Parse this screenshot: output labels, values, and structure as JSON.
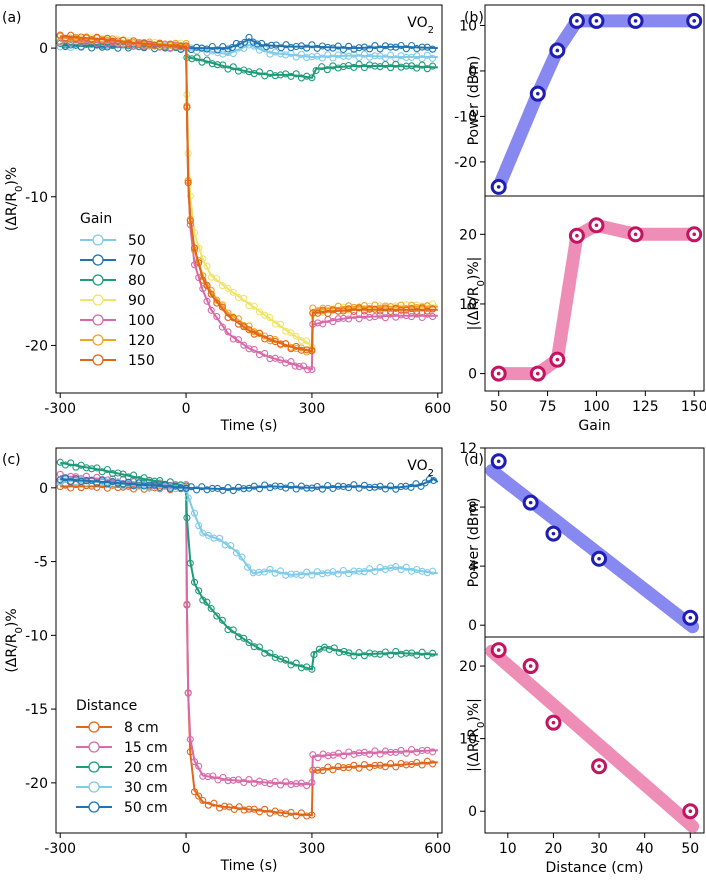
{
  "chart_data": [
    {
      "panel": "(a)",
      "type": "line",
      "annotation": "VO2",
      "xlabel": "Time (s)",
      "ylabel": "(ΔR/R0)%",
      "xlim": [
        -310,
        610
      ],
      "ylim": [
        -23.2,
        2.9
      ],
      "xticks": [
        -300,
        0,
        300,
        600
      ],
      "yticks": [
        0,
        -10,
        -20
      ],
      "legend_title": "Gain",
      "legend_position": "left",
      "series": [
        {
          "name": "50",
          "color": "#7FCBEA",
          "points": [
            [
              -300,
              0.1
            ],
            [
              -200,
              0.3
            ],
            [
              -100,
              0.2
            ],
            [
              0,
              0
            ],
            [
              100,
              -0.4
            ],
            [
              150,
              0.2
            ],
            [
              200,
              -0.3
            ],
            [
              300,
              -0.6
            ],
            [
              400,
              -0.5
            ],
            [
              500,
              -0.6
            ],
            [
              600,
              -0.6
            ]
          ]
        },
        {
          "name": "70",
          "color": "#1F74B0",
          "points": [
            [
              -300,
              0.2
            ],
            [
              -200,
              0.1
            ],
            [
              -100,
              0.1
            ],
            [
              0,
              0
            ],
            [
              50,
              0
            ],
            [
              100,
              0
            ],
            [
              130,
              0.3
            ],
            [
              150,
              0.6
            ],
            [
              180,
              0.2
            ],
            [
              250,
              0.1
            ],
            [
              300,
              0.1
            ],
            [
              400,
              0
            ],
            [
              500,
              0.1
            ],
            [
              600,
              0
            ]
          ]
        },
        {
          "name": "80",
          "color": "#1E9B78",
          "points": [
            [
              -300,
              0.3
            ],
            [
              -200,
              0.3
            ],
            [
              -100,
              0.2
            ],
            [
              0,
              0.1
            ],
            [
              2,
              -0.6
            ],
            [
              50,
              -0.9
            ],
            [
              100,
              -1.3
            ],
            [
              150,
              -1.6
            ],
            [
              200,
              -1.8
            ],
            [
              250,
              -1.8
            ],
            [
              300,
              -2.0
            ],
            [
              310,
              -1.4
            ],
            [
              350,
              -1.3
            ],
            [
              400,
              -1.2
            ],
            [
              500,
              -1.2
            ],
            [
              600,
              -1.3
            ]
          ]
        },
        {
          "name": "90",
          "color": "#F0E468",
          "points": [
            [
              -300,
              0.5
            ],
            [
              -200,
              0.6
            ],
            [
              -100,
              0.3
            ],
            [
              0,
              0.2
            ],
            [
              2,
              -3
            ],
            [
              5,
              -7
            ],
            [
              10,
              -10
            ],
            [
              20,
              -12.5
            ],
            [
              40,
              -14.2
            ],
            [
              60,
              -15.3
            ],
            [
              100,
              -16.2
            ],
            [
              150,
              -17.2
            ],
            [
              200,
              -18.2
            ],
            [
              250,
              -19.2
            ],
            [
              300,
              -20
            ],
            [
              302,
              -17.8
            ],
            [
              350,
              -17.6
            ],
            [
              400,
              -17.5
            ],
            [
              500,
              -17.4
            ],
            [
              600,
              -17.3
            ]
          ]
        },
        {
          "name": "100",
          "color": "#D86AAA",
          "points": [
            [
              -300,
              0.5
            ],
            [
              -200,
              0.4
            ],
            [
              -100,
              0.2
            ],
            [
              0,
              0.1
            ],
            [
              2,
              -4
            ],
            [
              5,
              -9
            ],
            [
              10,
              -12
            ],
            [
              20,
              -14.5
            ],
            [
              40,
              -16.3
            ],
            [
              60,
              -17.6
            ],
            [
              100,
              -19.2
            ],
            [
              150,
              -20.2
            ],
            [
              200,
              -20.8
            ],
            [
              250,
              -21.2
            ],
            [
              280,
              -21.5
            ],
            [
              300,
              -21.6
            ],
            [
              302,
              -18.6
            ],
            [
              350,
              -18.3
            ],
            [
              400,
              -18.1
            ],
            [
              500,
              -18
            ],
            [
              600,
              -18
            ]
          ]
        },
        {
          "name": "120",
          "color": "#F0A326",
          "points": [
            [
              -300,
              0.7
            ],
            [
              -200,
              0.6
            ],
            [
              -100,
              0.3
            ],
            [
              0,
              0.2
            ],
            [
              2,
              -4
            ],
            [
              5,
              -9
            ],
            [
              10,
              -11.5
            ],
            [
              20,
              -13.5
            ],
            [
              40,
              -15.3
            ],
            [
              60,
              -16.4
            ],
            [
              100,
              -17.8
            ],
            [
              150,
              -18.8
            ],
            [
              200,
              -19.6
            ],
            [
              250,
              -20.1
            ],
            [
              300,
              -20.4
            ],
            [
              302,
              -17.6
            ],
            [
              350,
              -17.5
            ],
            [
              400,
              -17.4
            ],
            [
              500,
              -17.4
            ],
            [
              600,
              -17.4
            ]
          ]
        },
        {
          "name": "150",
          "color": "#E0661A",
          "points": [
            [
              -300,
              0.8
            ],
            [
              -200,
              0.6
            ],
            [
              -100,
              0.3
            ],
            [
              0,
              0.1
            ],
            [
              2,
              -4
            ],
            [
              5,
              -9
            ],
            [
              10,
              -11.5
            ],
            [
              20,
              -13.5
            ],
            [
              40,
              -15.5
            ],
            [
              60,
              -16.6
            ],
            [
              100,
              -18
            ],
            [
              150,
              -19
            ],
            [
              200,
              -19.6
            ],
            [
              250,
              -20.1
            ],
            [
              300,
              -20.4
            ],
            [
              302,
              -17.8
            ],
            [
              350,
              -17.7
            ],
            [
              400,
              -17.6
            ],
            [
              500,
              -17.6
            ],
            [
              600,
              -17.6
            ]
          ]
        }
      ]
    },
    {
      "panel": "(b)",
      "type": "scatter",
      "subplots": [
        {
          "ylabel": "Power (dBm)",
          "ylim": [
            -27.5,
            14.5
          ],
          "yticks": [
            10,
            0,
            -10,
            -20
          ],
          "color": "#1E1EB4",
          "band_color": "#7B7BF0",
          "x": [
            50,
            70,
            80,
            90,
            100,
            120,
            150
          ],
          "y": [
            -25.5,
            -5,
            4.5,
            11,
            11,
            11,
            11
          ]
        },
        {
          "ylabel": "|(ΔR/R0)%|",
          "ylim": [
            -2.5,
            25.5
          ],
          "yticks": [
            20,
            10,
            0
          ],
          "color": "#C21461",
          "band_color": "#EC82AE",
          "x": [
            50,
            70,
            80,
            90,
            100,
            120,
            150
          ],
          "y": [
            0,
            0,
            2,
            19.8,
            21.3,
            20,
            20
          ]
        }
      ],
      "xlabel": "Gain",
      "xlim": [
        43,
        155
      ],
      "xticks": [
        50,
        75,
        100,
        125,
        150
      ]
    },
    {
      "panel": "(c)",
      "type": "line",
      "annotation": "VO2",
      "xlabel": "Time (s)",
      "ylabel": "(ΔR/R0)%",
      "xlim": [
        -310,
        610
      ],
      "ylim": [
        -23.4,
        2.7
      ],
      "xticks": [
        -300,
        0,
        300,
        600
      ],
      "yticks": [
        0,
        -5,
        -10,
        -15,
        -20
      ],
      "legend_title": "Distance",
      "legend_position": "bottom-left",
      "series": [
        {
          "name": "8 cm",
          "color": "#E0661A",
          "points": [
            [
              -300,
              0.1
            ],
            [
              -200,
              0.1
            ],
            [
              -100,
              0
            ],
            [
              0,
              0
            ],
            [
              2,
              -8
            ],
            [
              5,
              -14
            ],
            [
              10,
              -18
            ],
            [
              20,
              -20.5
            ],
            [
              40,
              -21.3
            ],
            [
              80,
              -21.6
            ],
            [
              150,
              -21.8
            ],
            [
              250,
              -22.1
            ],
            [
              300,
              -22.2
            ],
            [
              302,
              -19.2
            ],
            [
              350,
              -19
            ],
            [
              400,
              -18.9
            ],
            [
              500,
              -18.8
            ],
            [
              600,
              -18.6
            ]
          ]
        },
        {
          "name": "15 cm",
          "color": "#D86AAA",
          "points": [
            [
              -300,
              0.8
            ],
            [
              -200,
              0.6
            ],
            [
              -100,
              0.3
            ],
            [
              0,
              0.1
            ],
            [
              2,
              -8
            ],
            [
              5,
              -14
            ],
            [
              10,
              -17
            ],
            [
              20,
              -18.5
            ],
            [
              40,
              -19.5
            ],
            [
              100,
              -19.8
            ],
            [
              200,
              -20
            ],
            [
              300,
              -20.1
            ],
            [
              302,
              -18.2
            ],
            [
              400,
              -18
            ],
            [
              500,
              -17.9
            ],
            [
              600,
              -17.8
            ]
          ]
        },
        {
          "name": "20 cm",
          "color": "#1E9B78",
          "points": [
            [
              -300,
              1.7
            ],
            [
              -200,
              1.2
            ],
            [
              -100,
              0.6
            ],
            [
              0,
              0.1
            ],
            [
              2,
              -2
            ],
            [
              10,
              -5
            ],
            [
              20,
              -6.5
            ],
            [
              40,
              -7.5
            ],
            [
              60,
              -8.2
            ],
            [
              100,
              -9.5
            ],
            [
              150,
              -10.5
            ],
            [
              200,
              -11.3
            ],
            [
              250,
              -11.9
            ],
            [
              300,
              -12.3
            ],
            [
              305,
              -11.2
            ],
            [
              330,
              -10.8
            ],
            [
              400,
              -11.3
            ],
            [
              500,
              -11.2
            ],
            [
              600,
              -11.3
            ]
          ]
        },
        {
          "name": "30 cm",
          "color": "#7FCBEA",
          "points": [
            [
              -300,
              0.5
            ],
            [
              -200,
              0.4
            ],
            [
              -100,
              0.1
            ],
            [
              0,
              0
            ],
            [
              5,
              -0.6
            ],
            [
              20,
              -1.8
            ],
            [
              40,
              -3.1
            ],
            [
              80,
              -3.5
            ],
            [
              120,
              -4.3
            ],
            [
              160,
              -5.8
            ],
            [
              200,
              -5.6
            ],
            [
              250,
              -5.9
            ],
            [
              300,
              -5.8
            ],
            [
              400,
              -5.7
            ],
            [
              500,
              -5.4
            ],
            [
              600,
              -5.8
            ]
          ]
        },
        {
          "name": "50 cm",
          "color": "#1F74B0",
          "points": [
            [
              -300,
              0.6
            ],
            [
              -200,
              0.4
            ],
            [
              -100,
              0.2
            ],
            [
              0,
              0
            ],
            [
              100,
              -0.1
            ],
            [
              200,
              0.1
            ],
            [
              300,
              0
            ],
            [
              400,
              0.1
            ],
            [
              500,
              0
            ],
            [
              560,
              0.2
            ],
            [
              590,
              0.6
            ],
            [
              600,
              0.4
            ]
          ]
        }
      ]
    },
    {
      "panel": "(d)",
      "type": "scatter",
      "subplots": [
        {
          "ylabel": "Power (dBm)",
          "ylim": [
            -0.8,
            12
          ],
          "yticks": [
            12,
            8,
            4,
            0
          ],
          "color": "#1E1EB4",
          "band_color": "#7B7BF0",
          "x": [
            8,
            15,
            20,
            30,
            50
          ],
          "y": [
            11.1,
            8.3,
            6.2,
            4.5,
            0.5
          ]
        },
        {
          "ylabel": "|(ΔR/R0)%|",
          "ylim": [
            -3,
            24
          ],
          "yticks": [
            20,
            10,
            0
          ],
          "color": "#C21461",
          "band_color": "#EC82AE",
          "x": [
            8,
            15,
            20,
            30,
            50
          ],
          "y": [
            22.2,
            20,
            12.2,
            6.2,
            0
          ]
        }
      ],
      "xlabel": "Distance (cm)",
      "xlim": [
        5,
        53
      ],
      "xticks": [
        10,
        20,
        30,
        40,
        50
      ]
    }
  ]
}
